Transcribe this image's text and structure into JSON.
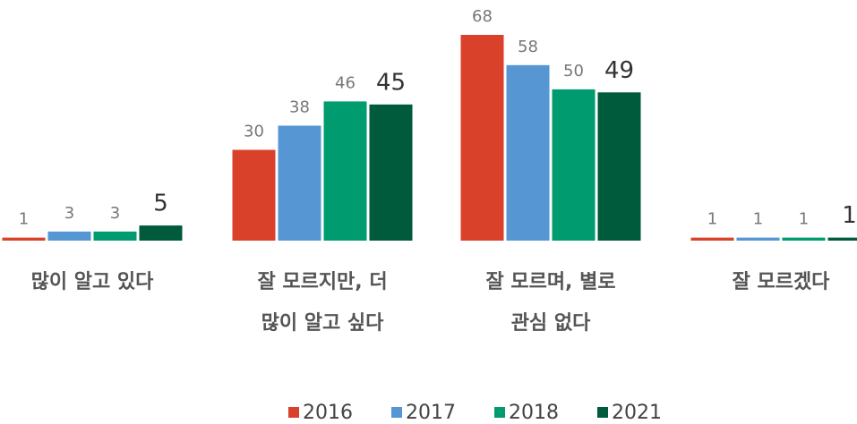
{
  "chart_data": {
    "type": "bar",
    "categories": [
      [
        "많이 알고 있다"
      ],
      [
        "잘 모르지만, 더",
        "많이 알고 싶다"
      ],
      [
        "잘 모르며, 별로",
        "관심 없다"
      ],
      [
        "잘 모르겠다"
      ]
    ],
    "series": [
      {
        "name": "2016",
        "color": "#d9412b",
        "values": [
          1,
          30,
          68,
          1
        ]
      },
      {
        "name": "2017",
        "color": "#5596d3",
        "values": [
          3,
          38,
          58,
          1
        ]
      },
      {
        "name": "2018",
        "color": "#009b6e",
        "values": [
          3,
          46,
          50,
          1
        ]
      },
      {
        "name": "2021",
        "color": "#005a3c",
        "values": [
          5,
          45,
          49,
          1
        ]
      }
    ]
  }
}
